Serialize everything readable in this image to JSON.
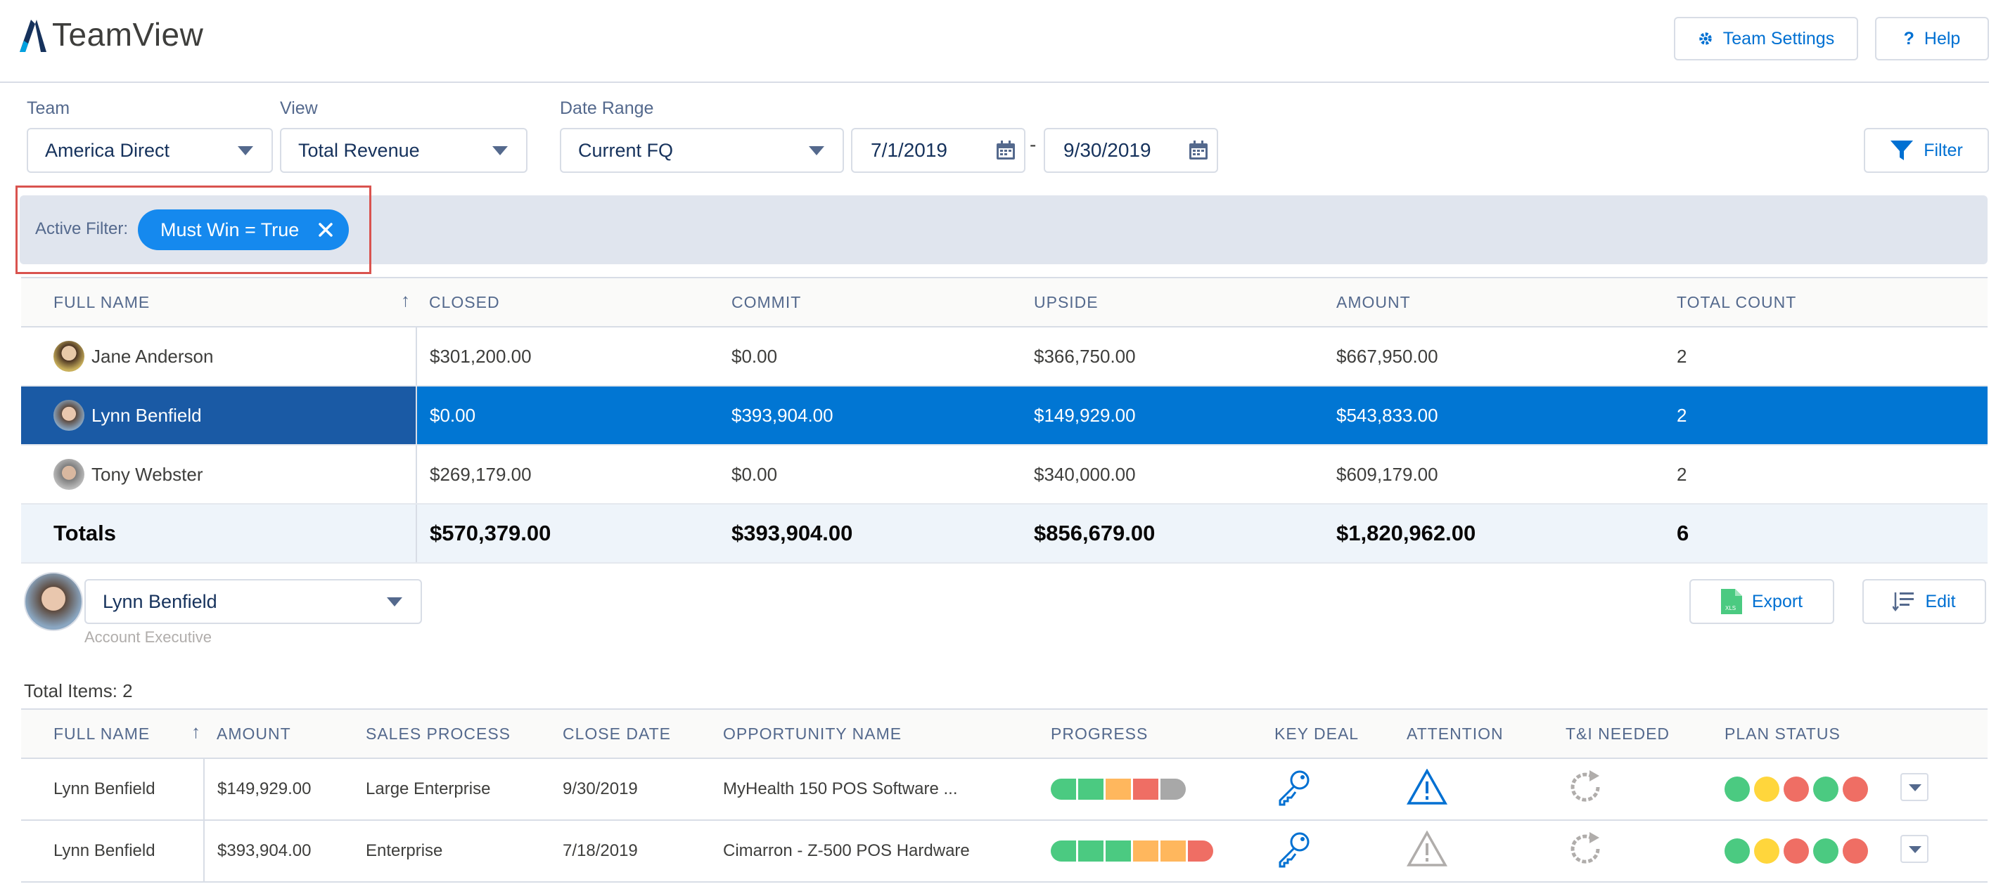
{
  "app": {
    "title": "TeamView"
  },
  "header": {
    "team_settings": "Team Settings",
    "help": "Help"
  },
  "filters": {
    "team_label": "Team",
    "team_value": "America Direct",
    "view_label": "View",
    "view_value": "Total Revenue",
    "date_label": "Date Range",
    "date_value": "Current FQ",
    "start_date": "7/1/2019",
    "date_sep": "-",
    "end_date": "9/30/2019",
    "filter_button": "Filter"
  },
  "active_filter": {
    "label": "Active Filter:",
    "pill": "Must Win = True"
  },
  "summary": {
    "headers": [
      "FULL NAME",
      "CLOSED",
      "COMMIT",
      "UPSIDE",
      "AMOUNT",
      "TOTAL COUNT"
    ],
    "rows": [
      {
        "name": "Jane Anderson",
        "closed": "$301,200.00",
        "commit": "$0.00",
        "upside": "$366,750.00",
        "amount": "$667,950.00",
        "count": "2"
      },
      {
        "name": "Lynn Benfield",
        "closed": "$0.00",
        "commit": "$393,904.00",
        "upside": "$149,929.00",
        "amount": "$543,833.00",
        "count": "2"
      },
      {
        "name": "Tony Webster",
        "closed": "$269,179.00",
        "commit": "$0.00",
        "upside": "$340,000.00",
        "amount": "$609,179.00",
        "count": "2"
      }
    ],
    "totals": {
      "label": "Totals",
      "closed": "$570,379.00",
      "commit": "$393,904.00",
      "upside": "$856,679.00",
      "amount": "$1,820,962.00",
      "count": "6"
    }
  },
  "detail": {
    "user": "Lynn Benfield",
    "role": "Account Executive",
    "export": "Export",
    "edit": "Edit",
    "total_items": "Total Items: 2",
    "headers": [
      "FULL NAME",
      "AMOUNT",
      "SALES PROCESS",
      "CLOSE DATE",
      "OPPORTUNITY NAME",
      "PROGRESS",
      "KEY DEAL",
      "ATTENTION",
      "T&I NEEDED",
      "PLAN STATUS"
    ],
    "rows": [
      {
        "name": "Lynn Benfield",
        "amount": "$149,929.00",
        "process": "Large Enterprise",
        "close": "9/30/2019",
        "opportunity": "MyHealth 150 POS Software ...",
        "progress": [
          "#4bca81",
          "#4bca81",
          "#ffb75d",
          "#ef6e64",
          "#a8a8a8"
        ],
        "attention_color": "#0070d2",
        "plan": [
          "#4bca81",
          "#ffd63c",
          "#ef6e64",
          "#4bca81",
          "#ef6e64"
        ]
      },
      {
        "name": "Lynn Benfield",
        "amount": "$393,904.00",
        "process": "Enterprise",
        "close": "7/18/2019",
        "opportunity": "Cimarron - Z-500 POS Hardware",
        "progress": [
          "#4bca81",
          "#4bca81",
          "#4bca81",
          "#ffb75d",
          "#ffb75d",
          "#ef6e64"
        ],
        "attention_color": "#b0adab",
        "plan": [
          "#4bca81",
          "#ffd63c",
          "#ef6e64",
          "#4bca81",
          "#ef6e64"
        ]
      }
    ]
  },
  "colors": {
    "brand": "#0070d2",
    "selected_row": "#0176d3",
    "pill": "#1589ee",
    "highlight_box": "#d9534f"
  }
}
